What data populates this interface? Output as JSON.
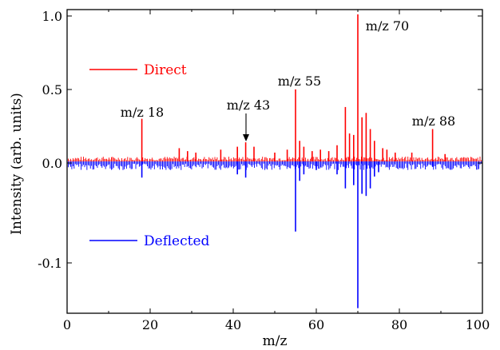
{
  "chart_data": {
    "type": "line",
    "xlabel": "m/z",
    "ylabel": "Intensity (arb. units)",
    "xlim": [
      0,
      100
    ],
    "x_ticks": [
      0,
      20,
      40,
      60,
      80,
      100
    ],
    "x_tick_labels": [
      "0",
      "20",
      "40",
      "60",
      "80",
      "100"
    ],
    "y_tick_labels": [
      "1.0",
      "0.5",
      "0.0",
      "-0.1"
    ],
    "y_scale": "broken: positive half 0 to 1.0, negative half 0 to -0.12 (separately scaled)",
    "legend": {
      "placement": "left, inside plot",
      "entries": [
        "Direct",
        "Deflected"
      ]
    },
    "grid": false,
    "series": [
      {
        "name": "Direct",
        "color": "#ff0000",
        "direction": "up",
        "peaks": [
          {
            "x": 18,
            "y": 0.29
          },
          {
            "x": 27,
            "y": 0.09
          },
          {
            "x": 29,
            "y": 0.07
          },
          {
            "x": 31,
            "y": 0.06
          },
          {
            "x": 37,
            "y": 0.08
          },
          {
            "x": 41,
            "y": 0.1
          },
          {
            "x": 43,
            "y": 0.13
          },
          {
            "x": 45,
            "y": 0.1
          },
          {
            "x": 50,
            "y": 0.06
          },
          {
            "x": 53,
            "y": 0.08
          },
          {
            "x": 55,
            "y": 0.49
          },
          {
            "x": 56,
            "y": 0.14
          },
          {
            "x": 57,
            "y": 0.1
          },
          {
            "x": 59,
            "y": 0.07
          },
          {
            "x": 61,
            "y": 0.08
          },
          {
            "x": 63,
            "y": 0.07
          },
          {
            "x": 65,
            "y": 0.11
          },
          {
            "x": 67,
            "y": 0.37
          },
          {
            "x": 68,
            "y": 0.19
          },
          {
            "x": 69,
            "y": 0.18
          },
          {
            "x": 70,
            "y": 1.0
          },
          {
            "x": 71,
            "y": 0.3
          },
          {
            "x": 72,
            "y": 0.33
          },
          {
            "x": 73,
            "y": 0.22
          },
          {
            "x": 74,
            "y": 0.14
          },
          {
            "x": 76,
            "y": 0.09
          },
          {
            "x": 77,
            "y": 0.08
          },
          {
            "x": 79,
            "y": 0.06
          },
          {
            "x": 83,
            "y": 0.06
          },
          {
            "x": 88,
            "y": 0.22
          },
          {
            "x": 91,
            "y": 0.05
          }
        ]
      },
      {
        "name": "Deflected",
        "color": "#0000ff",
        "direction": "down",
        "peaks": [
          {
            "x": 18,
            "y": -0.015
          },
          {
            "x": 41,
            "y": -0.012
          },
          {
            "x": 43,
            "y": -0.015
          },
          {
            "x": 55,
            "y": -0.065
          },
          {
            "x": 56,
            "y": -0.018
          },
          {
            "x": 57,
            "y": -0.012
          },
          {
            "x": 60,
            "y": -0.008
          },
          {
            "x": 65,
            "y": -0.012
          },
          {
            "x": 67,
            "y": -0.025
          },
          {
            "x": 69,
            "y": -0.022
          },
          {
            "x": 70,
            "y": -0.136
          },
          {
            "x": 71,
            "y": -0.03
          },
          {
            "x": 72,
            "y": -0.032
          },
          {
            "x": 73,
            "y": -0.025
          },
          {
            "x": 74,
            "y": -0.014
          },
          {
            "x": 75,
            "y": -0.01
          },
          {
            "x": 88,
            "y": -0.005
          }
        ]
      }
    ],
    "annotations": [
      {
        "text": "m/z 18",
        "x": 18
      },
      {
        "text": "m/z 43",
        "x": 43,
        "arrow": true
      },
      {
        "text": "m/z 55",
        "x": 55
      },
      {
        "text": "m/z 70",
        "x": 70
      },
      {
        "text": "m/z 88",
        "x": 88
      }
    ]
  }
}
